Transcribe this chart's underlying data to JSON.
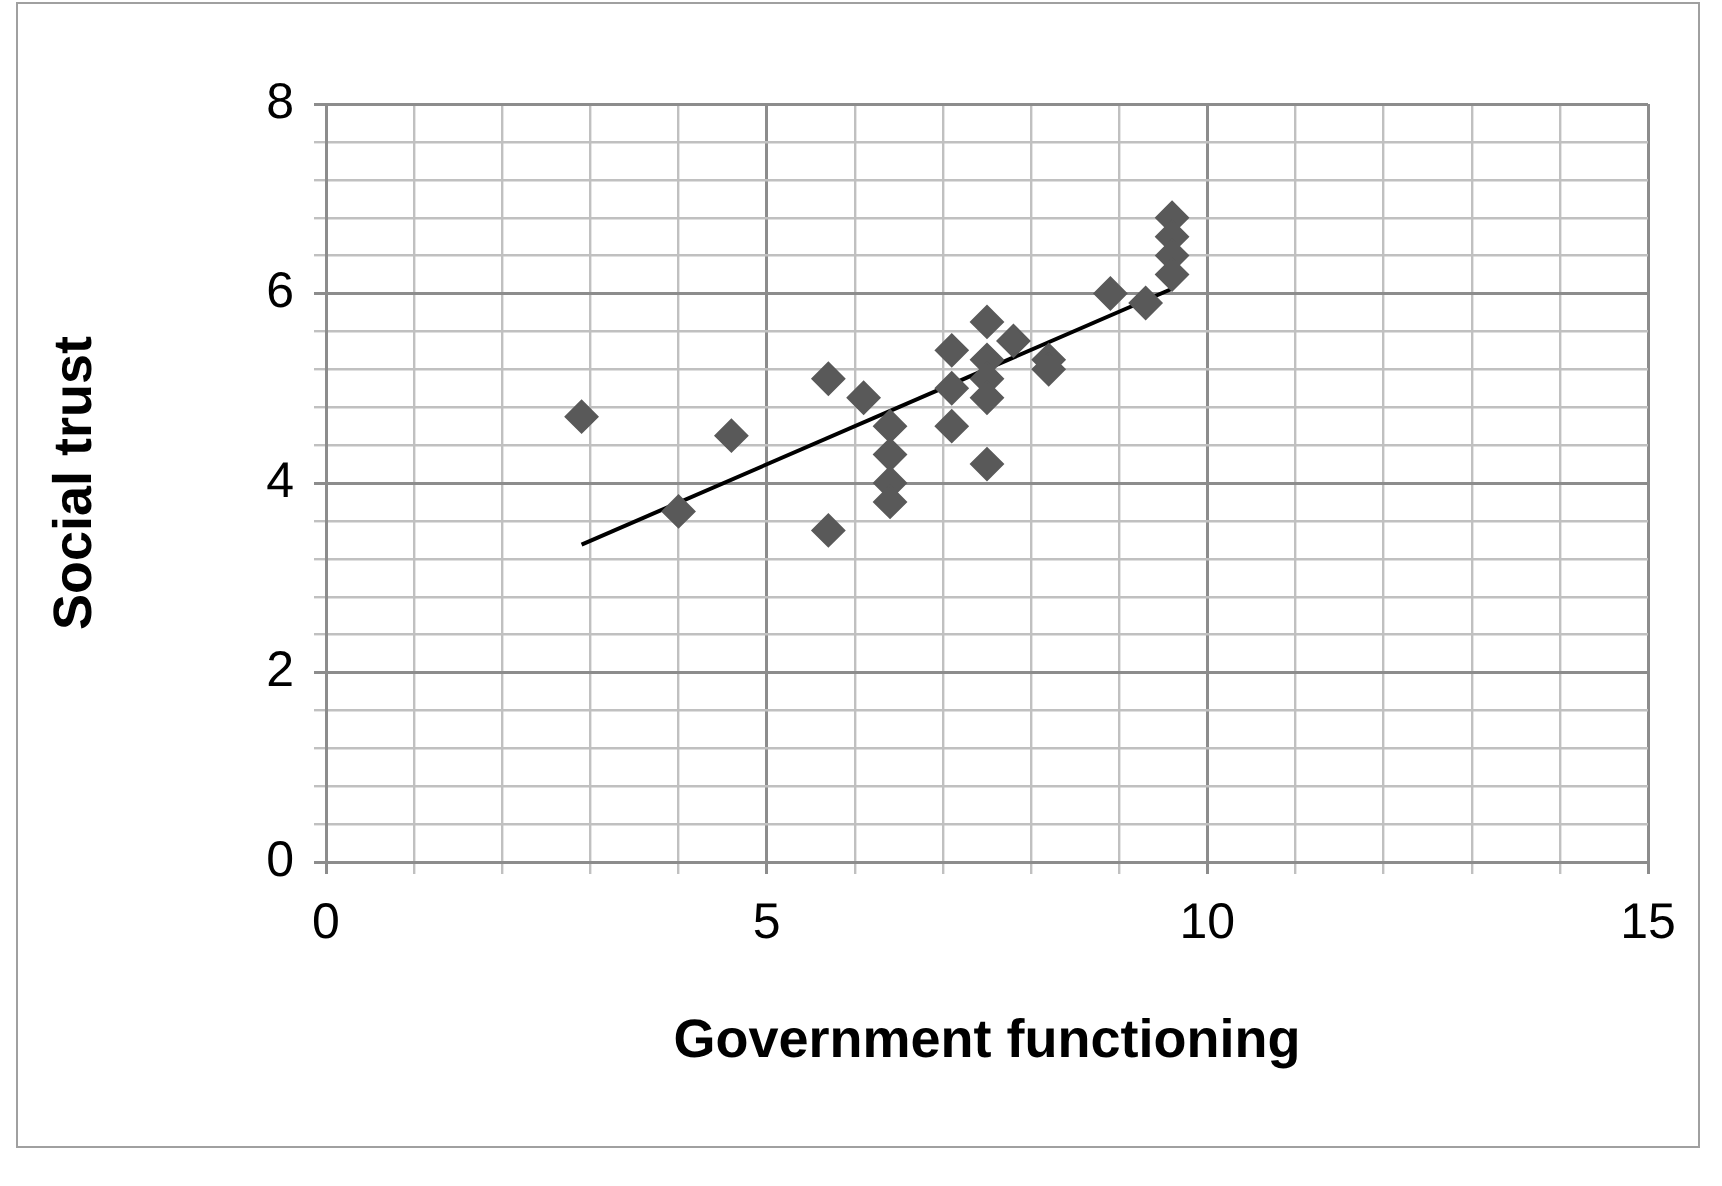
{
  "chart_data": {
    "type": "scatter",
    "xlabel": "Government functioning",
    "ylabel": "Social trust",
    "xlim": [
      0,
      15
    ],
    "ylim": [
      0,
      8
    ],
    "xticks": [
      0,
      {
        "value": 1,
        "label": null
      },
      {
        "value": 2,
        "label": null
      },
      {
        "value": 3,
        "label": null
      },
      {
        "value": 4,
        "label": null
      },
      5,
      {
        "value": 6,
        "label": null
      },
      {
        "value": 7,
        "label": null
      },
      {
        "value": 8,
        "label": null
      },
      {
        "value": 9,
        "label": null
      },
      10,
      {
        "value": 11,
        "label": null
      },
      {
        "value": 12,
        "label": null
      },
      {
        "value": 13,
        "label": null
      },
      {
        "value": 14,
        "label": null
      },
      15
    ],
    "yticks": [
      0,
      {
        "value": 0.4,
        "label": null
      },
      {
        "value": 0.8,
        "label": null
      },
      {
        "value": 1.2,
        "label": null
      },
      {
        "value": 1.6,
        "label": null
      },
      2,
      {
        "value": 2.4,
        "label": null
      },
      {
        "value": 2.8,
        "label": null
      },
      {
        "value": 3.2,
        "label": null
      },
      {
        "value": 3.6,
        "label": null
      },
      4,
      {
        "value": 4.4,
        "label": null
      },
      {
        "value": 4.8,
        "label": null
      },
      {
        "value": 5.2,
        "label": null
      },
      {
        "value": 5.6,
        "label": null
      },
      6,
      {
        "value": 6.4,
        "label": null
      },
      {
        "value": 6.8,
        "label": null
      },
      {
        "value": 7.2,
        "label": null
      },
      {
        "value": 7.6,
        "label": null
      },
      8
    ],
    "grid": true,
    "legend": false,
    "marker": "diamond",
    "series": [
      {
        "color": "#595959",
        "x": [
          2.9,
          4.0,
          4.6,
          5.7,
          5.7,
          6.1,
          6.4,
          6.4,
          6.4,
          6.4,
          7.1,
          7.1,
          7.1,
          7.5,
          7.5,
          7.5,
          7.5,
          7.5,
          7.8,
          8.2,
          8.2,
          8.9,
          9.3,
          9.6,
          9.6,
          9.6,
          9.6
        ],
        "values": [
          4.7,
          3.7,
          4.5,
          5.1,
          3.5,
          4.9,
          4.6,
          4.3,
          4.0,
          3.8,
          5.4,
          5.0,
          4.6,
          5.7,
          5.3,
          5.1,
          4.9,
          4.2,
          5.5,
          5.3,
          5.2,
          6.0,
          5.9,
          6.8,
          6.6,
          6.4,
          6.2
        ]
      },
      {
        "type": "line",
        "color": "#000000",
        "x": [
          2.9,
          9.6
        ],
        "values": [
          3.35,
          6.05
        ],
        "marker": "none"
      }
    ]
  }
}
